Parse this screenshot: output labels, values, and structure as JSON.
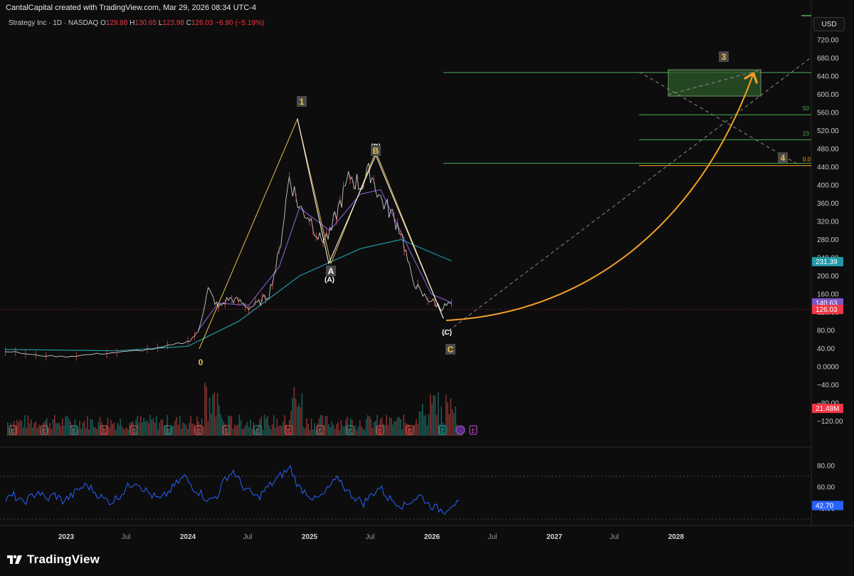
{
  "header": {
    "attribution": "CantalCapital created with TradingView.com, Mar 29, 2026 08:34 UTC-4",
    "symbol": "Strategy Inc · 1D · NASDAQ",
    "o_label": "O",
    "o_value": "129.88",
    "h_label": "H",
    "h_value": "130.65",
    "l_label": "L",
    "l_value": "123.98",
    "c_label": "C",
    "c_value": "126.03",
    "change": "−6.90 (−5.19%)"
  },
  "currency": "USD",
  "brand": "TradingView",
  "colors": {
    "background": "#0d0d0d",
    "price_line": "#e8e8e8",
    "ma_teal": "#1e9aa6",
    "ma_purple": "#7e57c2",
    "rsi": "#2962ff",
    "fib_green": "#4caf50",
    "arrow_orange": "#f59f27",
    "wave_yellow": "#e8c14d",
    "up": "#26a69a",
    "down": "#ef5350"
  },
  "chart_data": {
    "type": "line",
    "title": "Strategy Inc · 1D · NASDAQ",
    "price_axis": {
      "ticks": [
        "720.00",
        "680.00",
        "640.00",
        "600.00",
        "560.00",
        "520.00",
        "480.00",
        "440.00",
        "400.00",
        "360.00",
        "320.00",
        "280.00",
        "240.00",
        "200.00",
        "160.00",
        "120.00",
        "80.00",
        "40.00",
        "0.0000",
        "−40.00",
        "−80.00",
        "−120.00"
      ],
      "ylim": [
        -130,
        740
      ]
    },
    "time_axis": {
      "ticks": [
        "2023",
        "Jul",
        "2024",
        "Jul",
        "2025",
        "Jul",
        "2026",
        "Jul",
        "2027",
        "Jul",
        "2028"
      ]
    },
    "price_series": {
      "name": "Strategy Inc",
      "points": [
        [
          "2022-07",
          35
        ],
        [
          "2022-10",
          25
        ],
        [
          "2023-01",
          22
        ],
        [
          "2023-04",
          28
        ],
        [
          "2023-07",
          33
        ],
        [
          "2023-10",
          40
        ],
        [
          "2024-01",
          55
        ],
        [
          "2024-02",
          75
        ],
        [
          "2024-03",
          170
        ],
        [
          "2024-04",
          130
        ],
        [
          "2024-05",
          150
        ],
        [
          "2024-06",
          145
        ],
        [
          "2024-07",
          130
        ],
        [
          "2024-08",
          140
        ],
        [
          "2024-09",
          160
        ],
        [
          "2024-10",
          250
        ],
        [
          "2024-11",
          420
        ],
        [
          "2024-12",
          350
        ],
        [
          "2025-01",
          330
        ],
        [
          "2025-02",
          280
        ],
        [
          "2025-03",
          290
        ],
        [
          "2025-04",
          360
        ],
        [
          "2025-05",
          420
        ],
        [
          "2025-06",
          400
        ],
        [
          "2025-07",
          430
        ],
        [
          "2025-08",
          370
        ],
        [
          "2025-09",
          340
        ],
        [
          "2025-10",
          300
        ],
        [
          "2025-11",
          200
        ],
        [
          "2025-12",
          160
        ],
        [
          "2026-01",
          145
        ],
        [
          "2026-02",
          130
        ],
        [
          "2026-03",
          140
        ]
      ]
    },
    "ma_teal": {
      "points": [
        [
          "2022-07",
          38
        ],
        [
          "2023-06",
          35
        ],
        [
          "2024-01",
          45
        ],
        [
          "2024-06",
          100
        ],
        [
          "2024-12",
          200
        ],
        [
          "2025-06",
          260
        ],
        [
          "2025-10",
          280
        ],
        [
          "2026-03",
          233
        ]
      ]
    },
    "ma_purple": {
      "points": [
        [
          "2024-02",
          80
        ],
        [
          "2024-04",
          140
        ],
        [
          "2024-07",
          135
        ],
        [
          "2024-10",
          220
        ],
        [
          "2024-12",
          350
        ],
        [
          "2025-03",
          300
        ],
        [
          "2025-06",
          380
        ],
        [
          "2025-08",
          390
        ],
        [
          "2025-11",
          250
        ],
        [
          "2026-01",
          160
        ],
        [
          "2026-03",
          141
        ]
      ]
    },
    "last_price_labels": [
      {
        "value": "231.39",
        "color": "#1e9aa6",
        "price": 231.39
      },
      {
        "value": "140.63",
        "color": "#7e57c2",
        "price": 140.63
      },
      {
        "value": "126.03",
        "color": "#f23645",
        "price": 126.03
      },
      {
        "value": "21.48M",
        "color": "#f23645",
        "price": -92
      }
    ],
    "wave_labels": [
      {
        "text": "0",
        "date": "2024-01",
        "price": 5
      },
      {
        "text": "1",
        "date": "2024-11",
        "price": 620
      },
      {
        "text": "A",
        "date": "2025-03",
        "price": 225
      },
      {
        "text": "(A)",
        "date": "2025-03",
        "price": 210
      },
      {
        "text": "(B)",
        "date": "2025-07",
        "price": 508
      },
      {
        "text": "B",
        "date": "2025-07",
        "price": 494
      },
      {
        "text": "(C)",
        "date": "2026-01",
        "price": 85
      },
      {
        "text": "C",
        "date": "2026-01",
        "price": 40
      },
      {
        "text": "3",
        "date": "2027-11",
        "price": 680
      },
      {
        "text": "4",
        "date": "2028-04",
        "price": 455
      }
    ],
    "fib_levels": [
      {
        "label": "",
        "price": 648
      },
      {
        "label": "50",
        "price": 555
      },
      {
        "label": "23",
        "price": 500
      },
      {
        "label": "0.0",
        "price": 450
      }
    ],
    "volume_label": "21.48M",
    "rsi": {
      "ticks": [
        "80.00",
        "60.00",
        "40.00"
      ],
      "last": "42.70",
      "values": [
        48,
        52,
        45,
        50,
        56,
        48,
        53,
        47,
        51,
        58,
        62,
        55,
        49,
        46,
        52,
        60,
        66,
        58,
        52,
        48,
        55,
        63,
        70,
        60,
        54,
        47,
        52,
        68,
        75,
        62,
        55,
        50,
        58,
        65,
        72,
        78,
        60,
        55,
        48,
        52,
        62,
        68,
        56,
        50,
        45,
        53,
        60,
        50,
        46,
        42,
        48,
        52,
        44,
        40,
        38,
        45,
        43
      ]
    }
  },
  "earnings_markers": [
    "E",
    "E",
    "E",
    "E",
    "E",
    "E",
    "E",
    "E",
    "E",
    "E",
    "E",
    "E",
    "E",
    "E",
    "E",
    "E"
  ]
}
